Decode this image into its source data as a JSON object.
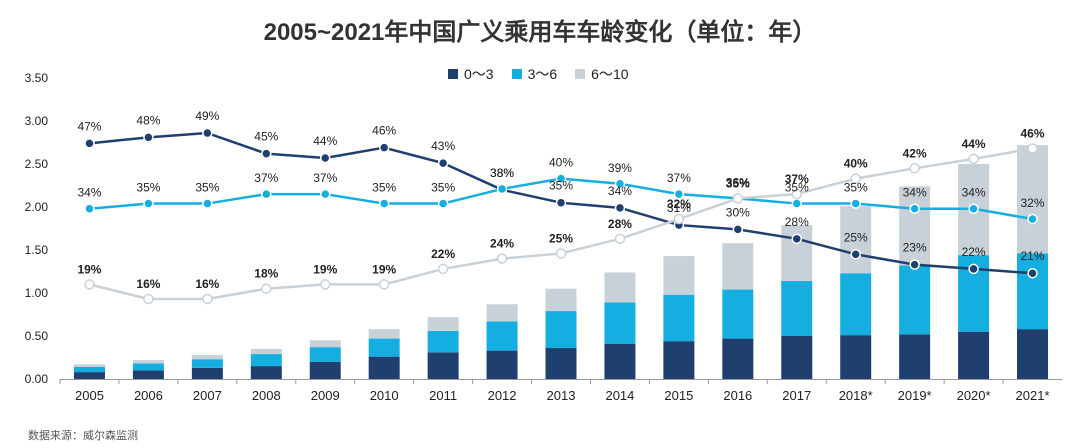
{
  "chart_data": {
    "type": "bar",
    "title": "2005~2021年中国广义乘用车车龄变化（单位：年）",
    "source": "数据来源：威尔森监测",
    "categories": [
      "2005",
      "2006",
      "2007",
      "2008",
      "2009",
      "2010",
      "2011",
      "2012",
      "2013",
      "2014",
      "2015",
      "2016",
      "2017",
      "2018*",
      "2019*",
      "2020*",
      "2021*"
    ],
    "ylim": [
      0,
      3.5
    ],
    "yticks": [
      "0.00",
      "0.50",
      "1.00",
      "1.50",
      "2.00",
      "2.50",
      "3.00",
      "3.50"
    ],
    "colors": {
      "s0_3": "#1F3F6E",
      "s3_6": "#14AEE0",
      "s6_10": "#C9D1D8"
    },
    "legend": [
      "0～3",
      "3～6",
      "6～10"
    ],
    "bar_series": [
      {
        "name": "0～3",
        "values": [
          0.08,
          0.1,
          0.13,
          0.15,
          0.2,
          0.26,
          0.31,
          0.33,
          0.36,
          0.41,
          0.44,
          0.47,
          0.5,
          0.51,
          0.52,
          0.55,
          0.58
        ]
      },
      {
        "name": "3～6",
        "values": [
          0.06,
          0.08,
          0.1,
          0.14,
          0.17,
          0.21,
          0.25,
          0.34,
          0.43,
          0.48,
          0.54,
          0.57,
          0.64,
          0.72,
          0.8,
          0.89,
          0.88
        ]
      },
      {
        "name": "6～10",
        "values": [
          0.03,
          0.04,
          0.05,
          0.06,
          0.08,
          0.11,
          0.16,
          0.2,
          0.26,
          0.35,
          0.45,
          0.54,
          0.65,
          0.78,
          0.92,
          1.06,
          1.26
        ]
      }
    ],
    "line_series": [
      {
        "name": "0～3",
        "values": [
          2.74,
          2.81,
          2.86,
          2.62,
          2.57,
          2.69,
          2.51,
          2.2,
          2.05,
          1.99,
          1.79,
          1.74,
          1.63,
          1.45,
          1.33,
          1.28,
          1.23
        ],
        "labels": [
          "47%",
          "48%",
          "49%",
          "45%",
          "44%",
          "46%",
          "43%",
          "38%",
          "35%",
          "34%",
          "31%",
          "30%",
          "28%",
          "25%",
          "23%",
          "22%",
          "21%"
        ]
      },
      {
        "name": "3～6",
        "values": [
          1.98,
          2.04,
          2.04,
          2.15,
          2.15,
          2.04,
          2.04,
          2.21,
          2.33,
          2.27,
          2.15,
          2.1,
          2.04,
          2.04,
          1.98,
          1.98,
          1.86
        ],
        "labels": [
          "34%",
          "35%",
          "35%",
          "37%",
          "37%",
          "35%",
          "35%",
          "38%",
          "40%",
          "39%",
          "37%",
          "36%",
          "35%",
          "35%",
          "34%",
          "34%",
          "32%"
        ]
      },
      {
        "name": "6～10",
        "values": [
          1.1,
          0.93,
          0.93,
          1.05,
          1.1,
          1.1,
          1.28,
          1.4,
          1.46,
          1.63,
          1.86,
          2.1,
          2.15,
          2.33,
          2.45,
          2.56,
          2.68
        ],
        "labels": [
          "19%",
          "16%",
          "16%",
          "18%",
          "19%",
          "19%",
          "22%",
          "24%",
          "25%",
          "28%",
          "32%",
          "35%",
          "37%",
          "40%",
          "42%",
          "44%",
          "46%"
        ]
      }
    ]
  }
}
